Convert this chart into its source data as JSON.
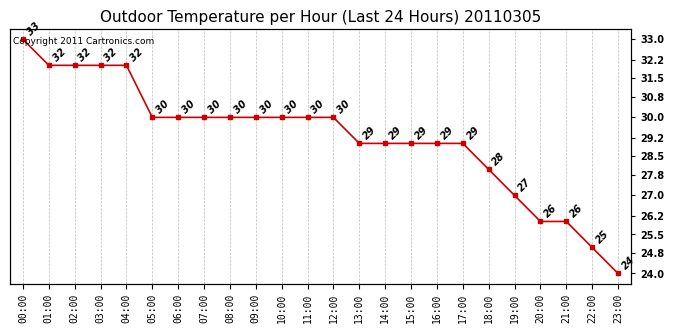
{
  "title": "Outdoor Temperature per Hour (Last 24 Hours) 20110305",
  "copyright_text": "Copyright 2011 Cartronics.com",
  "hours": [
    "00:00",
    "01:00",
    "02:00",
    "03:00",
    "04:00",
    "05:00",
    "06:00",
    "07:00",
    "08:00",
    "09:00",
    "10:00",
    "11:00",
    "12:00",
    "13:00",
    "14:00",
    "15:00",
    "16:00",
    "17:00",
    "18:00",
    "19:00",
    "20:00",
    "21:00",
    "22:00",
    "23:00"
  ],
  "temperatures": [
    33,
    32,
    32,
    32,
    32,
    30,
    30,
    30,
    30,
    30,
    30,
    30,
    30,
    29,
    29,
    29,
    29,
    29,
    28,
    27,
    26,
    26,
    25,
    24
  ],
  "yticks_right": [
    24.0,
    24.8,
    25.5,
    26.2,
    27.0,
    27.8,
    28.5,
    29.2,
    30.0,
    30.8,
    31.5,
    32.2,
    33.0
  ],
  "ylim": [
    23.6,
    33.4
  ],
  "line_color": "#cc0000",
  "marker": "s",
  "marker_size": 2.5,
  "bg_color": "#ffffff",
  "grid_color": "#aaaaaa",
  "label_fontsize": 7,
  "title_fontsize": 11,
  "data_label_fontsize": 7,
  "copyright_fontsize": 6.5
}
